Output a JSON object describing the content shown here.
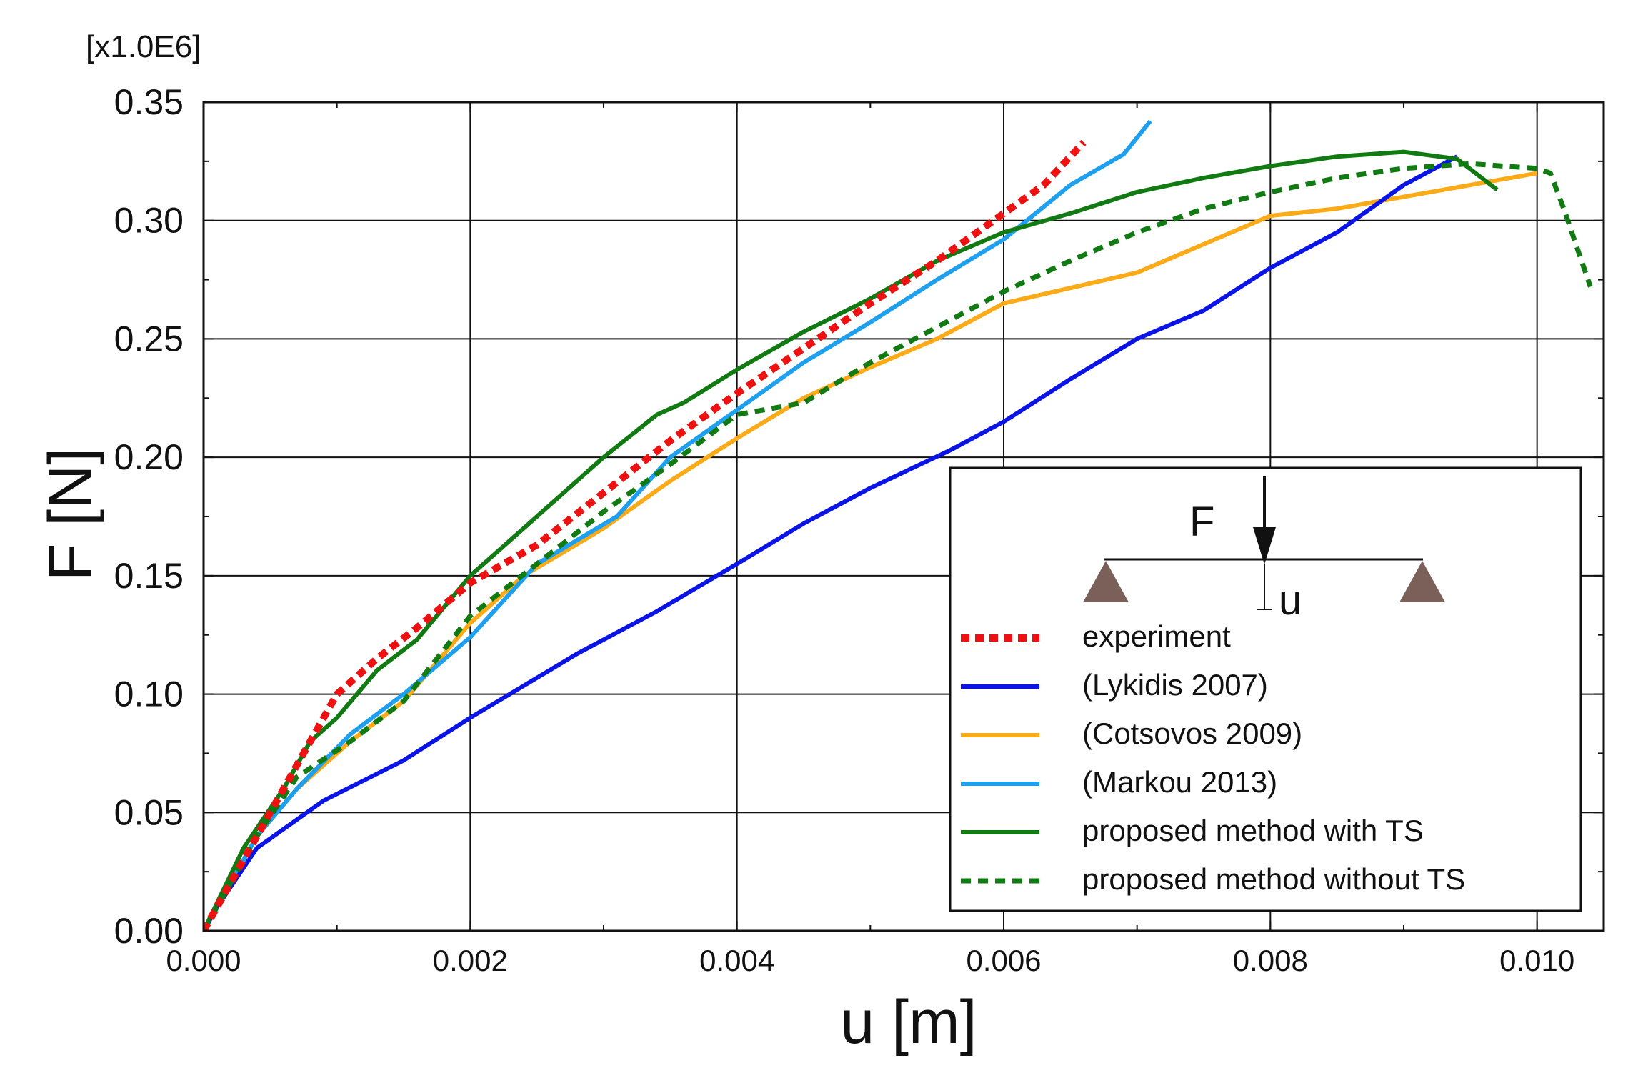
{
  "chart_data": {
    "type": "line",
    "title": "",
    "xlabel": "u [m]",
    "ylabel": "F [N]",
    "y_multiplier_label": "[x1.0E6]",
    "xlim": [
      0.0,
      0.0105
    ],
    "ylim": [
      0.0,
      0.35
    ],
    "x_ticks": [
      0.0,
      0.002,
      0.004,
      0.006,
      0.008,
      0.01
    ],
    "x_tick_labels": [
      "0.000",
      "0.002",
      "0.004",
      "0.006",
      "0.008",
      "0.010"
    ],
    "y_ticks": [
      0.0,
      0.05,
      0.1,
      0.15,
      0.2,
      0.25,
      0.3,
      0.35
    ],
    "y_tick_labels": [
      "0.00",
      "0.05",
      "0.10",
      "0.15",
      "0.20",
      "0.25",
      "0.30",
      "0.35"
    ],
    "grid": true,
    "legend_position": "bottom-right",
    "series": [
      {
        "name": "experiment",
        "color": "#ee1111",
        "style": "dotted",
        "points": [
          [
            0,
            0
          ],
          [
            0.0002,
            0.02
          ],
          [
            0.0005,
            0.05
          ],
          [
            0.0008,
            0.08
          ],
          [
            0.001,
            0.1
          ],
          [
            0.0013,
            0.115
          ],
          [
            0.0016,
            0.128
          ],
          [
            0.002,
            0.147
          ],
          [
            0.0025,
            0.163
          ],
          [
            0.003,
            0.185
          ],
          [
            0.0035,
            0.207
          ],
          [
            0.004,
            0.227
          ],
          [
            0.0045,
            0.246
          ],
          [
            0.005,
            0.265
          ],
          [
            0.0055,
            0.283
          ],
          [
            0.006,
            0.303
          ],
          [
            0.0063,
            0.315
          ],
          [
            0.0066,
            0.333
          ]
        ]
      },
      {
        "name": "(Lykidis 2007)",
        "color": "#0a14e6",
        "style": "solid",
        "points": [
          [
            0,
            0
          ],
          [
            0.0001,
            0.01
          ],
          [
            0.0004,
            0.035
          ],
          [
            0.0009,
            0.055
          ],
          [
            0.0015,
            0.072
          ],
          [
            0.002,
            0.09
          ],
          [
            0.0028,
            0.117
          ],
          [
            0.0034,
            0.135
          ],
          [
            0.004,
            0.155
          ],
          [
            0.0045,
            0.172
          ],
          [
            0.005,
            0.187
          ],
          [
            0.0056,
            0.203
          ],
          [
            0.006,
            0.215
          ],
          [
            0.0065,
            0.233
          ],
          [
            0.007,
            0.25
          ],
          [
            0.0075,
            0.262
          ],
          [
            0.008,
            0.28
          ],
          [
            0.0085,
            0.295
          ],
          [
            0.009,
            0.315
          ],
          [
            0.0094,
            0.327
          ]
        ]
      },
      {
        "name": "(Cotsovos 2009)",
        "color": "#fbaa18",
        "style": "solid",
        "points": [
          [
            0,
            0
          ],
          [
            0.0004,
            0.04
          ],
          [
            0.0007,
            0.06
          ],
          [
            0.0011,
            0.08
          ],
          [
            0.0015,
            0.097
          ],
          [
            0.002,
            0.13
          ],
          [
            0.0024,
            0.15
          ],
          [
            0.003,
            0.17
          ],
          [
            0.0035,
            0.19
          ],
          [
            0.004,
            0.208
          ],
          [
            0.0045,
            0.225
          ],
          [
            0.005,
            0.238
          ],
          [
            0.0055,
            0.25
          ],
          [
            0.006,
            0.265
          ],
          [
            0.007,
            0.278
          ],
          [
            0.0075,
            0.29
          ],
          [
            0.008,
            0.302
          ],
          [
            0.0085,
            0.305
          ],
          [
            0.009,
            0.31
          ],
          [
            0.0095,
            0.315
          ],
          [
            0.01,
            0.32
          ]
        ]
      },
      {
        "name": "(Markou 2013)",
        "color": "#1ea0ee",
        "style": "solid",
        "points": [
          [
            0,
            0
          ],
          [
            0.0004,
            0.04
          ],
          [
            0.0007,
            0.06
          ],
          [
            0.0011,
            0.083
          ],
          [
            0.0015,
            0.1
          ],
          [
            0.002,
            0.124
          ],
          [
            0.0025,
            0.155
          ],
          [
            0.0031,
            0.175
          ],
          [
            0.0035,
            0.2
          ],
          [
            0.004,
            0.22
          ],
          [
            0.0045,
            0.24
          ],
          [
            0.005,
            0.257
          ],
          [
            0.0055,
            0.275
          ],
          [
            0.006,
            0.292
          ],
          [
            0.0065,
            0.315
          ],
          [
            0.0069,
            0.328
          ],
          [
            0.0071,
            0.342
          ]
        ]
      },
      {
        "name": "proposed method with TS",
        "color": "#127a12",
        "style": "solid",
        "points": [
          [
            0,
            0
          ],
          [
            0.0003,
            0.035
          ],
          [
            0.0006,
            0.06
          ],
          [
            0.0008,
            0.08
          ],
          [
            0.001,
            0.09
          ],
          [
            0.0013,
            0.11
          ],
          [
            0.0016,
            0.123
          ],
          [
            0.002,
            0.15
          ],
          [
            0.0024,
            0.17
          ],
          [
            0.003,
            0.2
          ],
          [
            0.0034,
            0.218
          ],
          [
            0.0036,
            0.223
          ],
          [
            0.004,
            0.237
          ],
          [
            0.0045,
            0.253
          ],
          [
            0.005,
            0.267
          ],
          [
            0.0055,
            0.283
          ],
          [
            0.006,
            0.295
          ],
          [
            0.0065,
            0.303
          ],
          [
            0.007,
            0.312
          ],
          [
            0.0075,
            0.318
          ],
          [
            0.008,
            0.323
          ],
          [
            0.0085,
            0.327
          ],
          [
            0.009,
            0.329
          ],
          [
            0.0094,
            0.326
          ],
          [
            0.0097,
            0.313
          ]
        ]
      },
      {
        "name": "proposed method without TS",
        "color": "#127a12",
        "style": "dashed",
        "points": [
          [
            0,
            0
          ],
          [
            0.0004,
            0.04
          ],
          [
            0.0007,
            0.065
          ],
          [
            0.0011,
            0.08
          ],
          [
            0.0015,
            0.097
          ],
          [
            0.002,
            0.133
          ],
          [
            0.0025,
            0.155
          ],
          [
            0.003,
            0.177
          ],
          [
            0.0035,
            0.197
          ],
          [
            0.004,
            0.218
          ],
          [
            0.0045,
            0.223
          ],
          [
            0.005,
            0.24
          ],
          [
            0.0055,
            0.255
          ],
          [
            0.006,
            0.27
          ],
          [
            0.0065,
            0.283
          ],
          [
            0.007,
            0.295
          ],
          [
            0.0075,
            0.305
          ],
          [
            0.008,
            0.312
          ],
          [
            0.0085,
            0.318
          ],
          [
            0.009,
            0.322
          ],
          [
            0.0095,
            0.324
          ],
          [
            0.01,
            0.322
          ],
          [
            0.0101,
            0.32
          ],
          [
            0.0102,
            0.305
          ],
          [
            0.0104,
            0.272
          ]
        ]
      }
    ],
    "diagram": {
      "force_label": "F",
      "deflection_label": "u",
      "support_color": "#7a6058"
    }
  }
}
